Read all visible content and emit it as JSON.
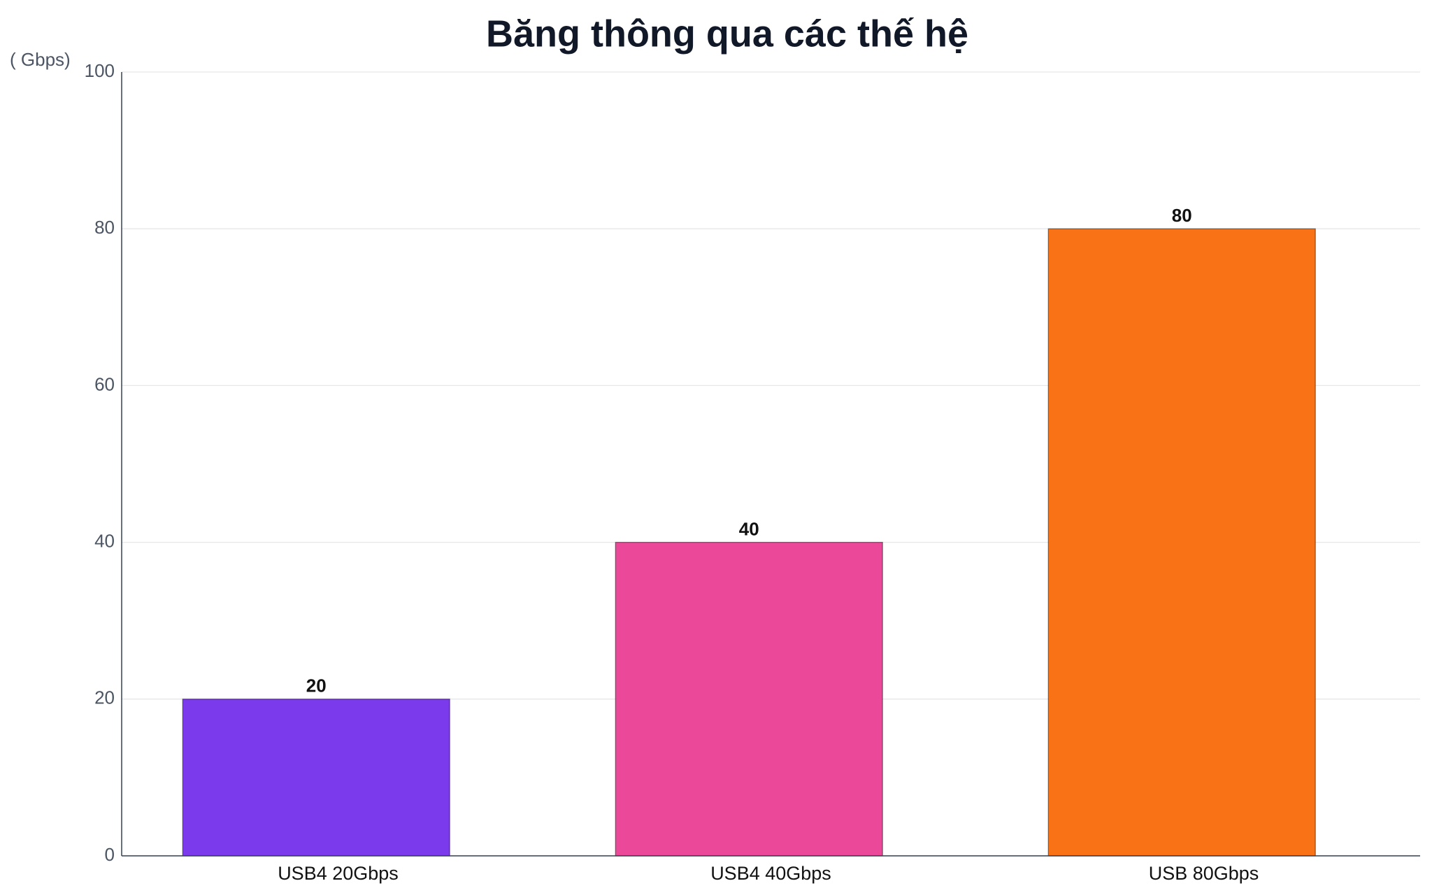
{
  "chart_data": {
    "type": "bar",
    "title": "Băng thông qua các thế hệ",
    "y_label": "( Gbps)",
    "categories": [
      "USB4 20Gbps",
      "USB4 40Gbps",
      "USB 80Gbps"
    ],
    "values": [
      20,
      40,
      80
    ],
    "colors": [
      "#7c3aed",
      "#ec4899",
      "#f97316"
    ],
    "ylim": [
      0,
      100
    ],
    "yticks": [
      0,
      20,
      40,
      60,
      80,
      100
    ],
    "grid": true
  }
}
